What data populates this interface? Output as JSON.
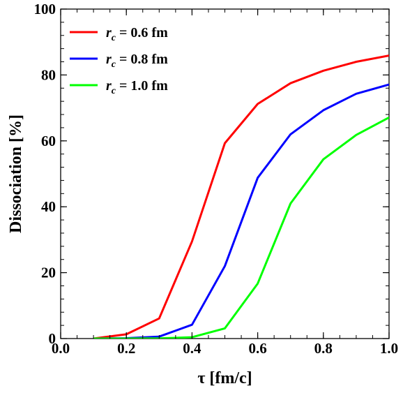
{
  "chart_data": {
    "type": "line",
    "xlabel": "τ [fm/c]",
    "ylabel": "Dissociation [%]",
    "xlim": [
      0.0,
      1.0
    ],
    "ylim": [
      0,
      100
    ],
    "x_ticks": [
      "0.0",
      "0.2",
      "0.4",
      "0.6",
      "0.8",
      "1.0"
    ],
    "y_ticks": [
      "0",
      "20",
      "40",
      "60",
      "80",
      "100"
    ],
    "grid": false,
    "legend_position": "top-left",
    "x": [
      0.1,
      0.2,
      0.3,
      0.4,
      0.5,
      0.6,
      0.7,
      0.8,
      0.9,
      1.0
    ],
    "series": [
      {
        "name": "r_c = 0.6 fm",
        "label_main": "r",
        "label_sub": "c",
        "label_rest": " = 0.6 fm",
        "color": "#ff0000",
        "values": [
          0.0,
          1.3,
          6.1,
          29.5,
          59.3,
          71.2,
          77.5,
          81.3,
          84.0,
          85.9
        ]
      },
      {
        "name": "r_c = 0.8 fm",
        "label_main": "r",
        "label_sub": "c",
        "label_rest": " = 0.8 fm",
        "color": "#0000ff",
        "values": [
          0.0,
          0.1,
          0.6,
          4.2,
          22.0,
          48.8,
          62.0,
          69.3,
          74.3,
          77.1
        ]
      },
      {
        "name": "r_c = 1.0 fm",
        "label_main": "r",
        "label_sub": "c",
        "label_rest": " = 1.0 fm",
        "color": "#00ff00",
        "values": [
          0.0,
          0.0,
          0.05,
          0.4,
          3.1,
          16.7,
          41.0,
          54.4,
          61.8,
          67.1
        ]
      }
    ]
  }
}
